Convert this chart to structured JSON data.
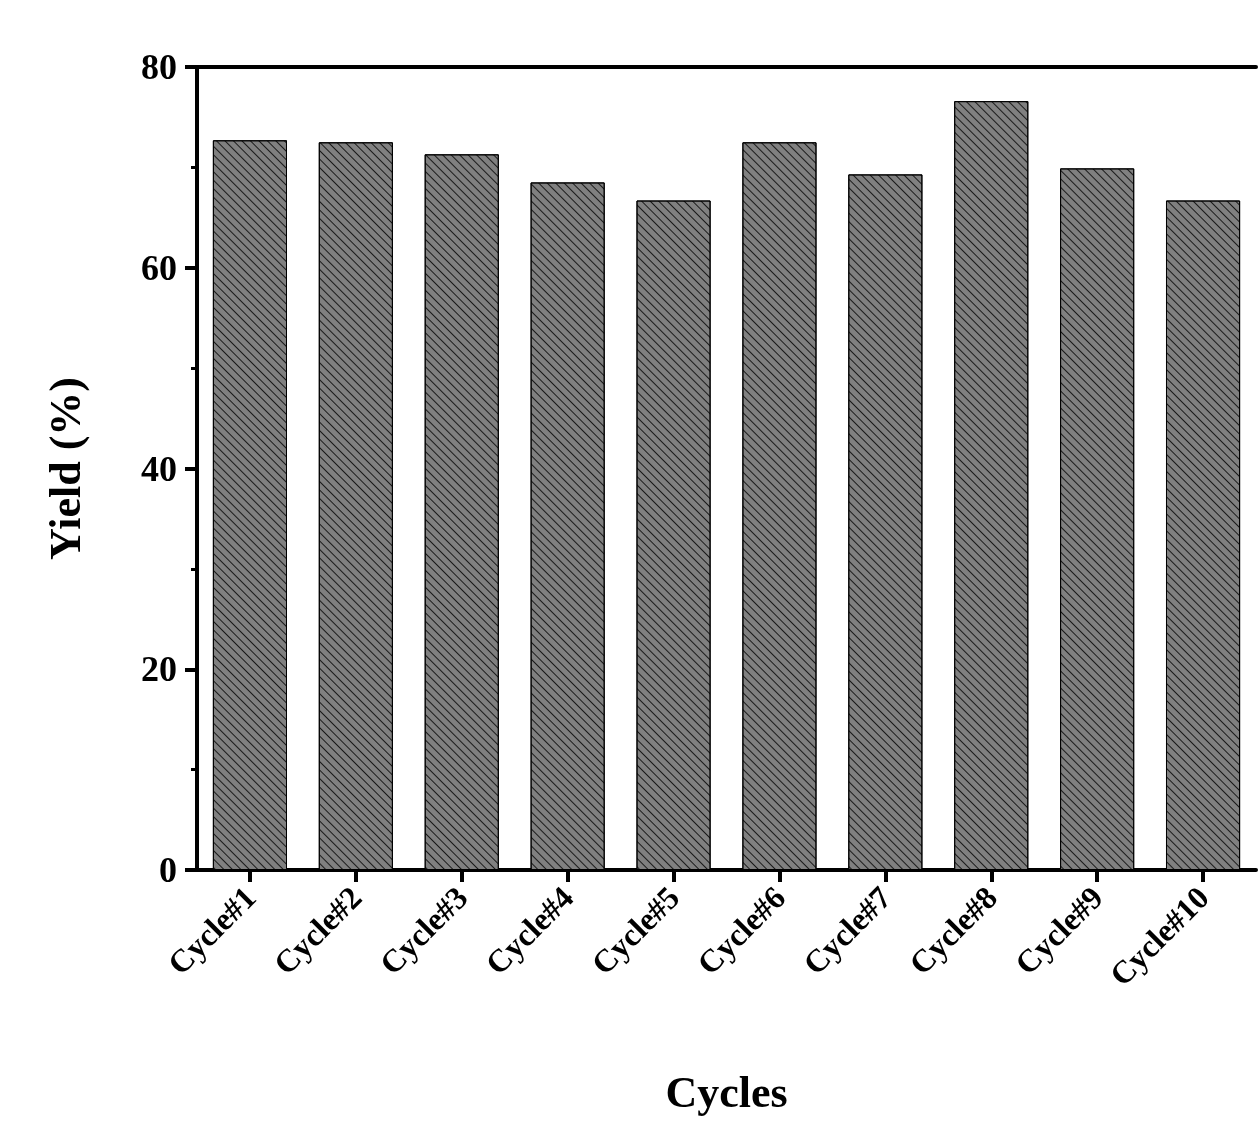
{
  "chart_data": {
    "type": "bar",
    "xlabel": "Cycles",
    "ylabel": "Yield (%)",
    "categories": [
      "Cycle#1",
      "Cycle#2",
      "Cycle#3",
      "Cycle#4",
      "Cycle#5",
      "Cycle#6",
      "Cycle#7",
      "Cycle#8",
      "Cycle#9",
      "Cycle#10"
    ],
    "values": [
      72.7,
      72.5,
      71.3,
      68.5,
      66.7,
      72.5,
      69.3,
      76.6,
      69.9,
      66.7
    ],
    "color": "#808080",
    "ylim": [
      0,
      80
    ],
    "yticks": [
      0,
      20,
      40,
      60,
      80
    ],
    "grid": false
  }
}
